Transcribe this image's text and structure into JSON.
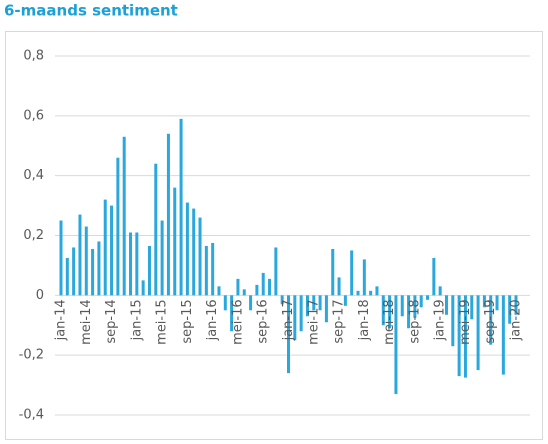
{
  "chart_data": {
    "type": "bar",
    "title": "6-maands sentiment",
    "color": "#2aa7dc",
    "grid": true,
    "ylim": [
      -0.4,
      0.8
    ],
    "yticks": [
      {
        "value": -0.4,
        "label": "-0,4"
      },
      {
        "value": -0.2,
        "label": "-0,2"
      },
      0,
      {
        "value": 0.2,
        "label": "0,2"
      },
      {
        "value": 0.4,
        "label": "0,4"
      },
      {
        "value": 0.6,
        "label": "0,6"
      },
      {
        "value": 0.8,
        "label": "0,8"
      }
    ],
    "categories": [
      "jan-14",
      null,
      null,
      null,
      "mei-14",
      null,
      null,
      null,
      "sep-14",
      null,
      null,
      null,
      "jan-15",
      null,
      null,
      null,
      "mei-15",
      null,
      null,
      null,
      "sep-15",
      null,
      null,
      null,
      "jan-16",
      null,
      null,
      null,
      "mei-16",
      null,
      null,
      null,
      "sep-16",
      null,
      null,
      null,
      "jan-17",
      null,
      null,
      null,
      "mei-17",
      null,
      null,
      null,
      "sep-17",
      null,
      null,
      null,
      "jan-18",
      null,
      null,
      null,
      "mei-18",
      null,
      null,
      null,
      "sep-18",
      null,
      null,
      null,
      "jan-19",
      null,
      null,
      null,
      "mei-19",
      null,
      null,
      null,
      "sep-19",
      null,
      null,
      null,
      "jan-20"
    ],
    "values": [
      0.25,
      0.125,
      0.16,
      0.27,
      0.23,
      0.155,
      0.18,
      0.32,
      0.3,
      0.46,
      0.53,
      0.21,
      0.21,
      0.05,
      0.165,
      0.44,
      0.25,
      0.54,
      0.36,
      0.59,
      0.31,
      0.29,
      0.26,
      0.165,
      0.175,
      0.03,
      -0.05,
      -0.12,
      0.055,
      0.02,
      -0.05,
      0.035,
      0.075,
      0.055,
      0.16,
      -0.03,
      -0.26,
      -0.15,
      -0.12,
      -0.07,
      -0.05,
      -0.05,
      -0.09,
      0.155,
      0.06,
      -0.035,
      0.15,
      0.015,
      0.12,
      0.015,
      0.03,
      -0.1,
      -0.11,
      -0.33,
      -0.07,
      -0.11,
      -0.075,
      -0.04,
      -0.015,
      0.125,
      0.03,
      -0.065,
      -0.17,
      -0.27,
      -0.275,
      -0.08,
      -0.25,
      -0.04,
      -0.165,
      -0.05,
      -0.265,
      -0.095,
      -0.065
    ]
  }
}
